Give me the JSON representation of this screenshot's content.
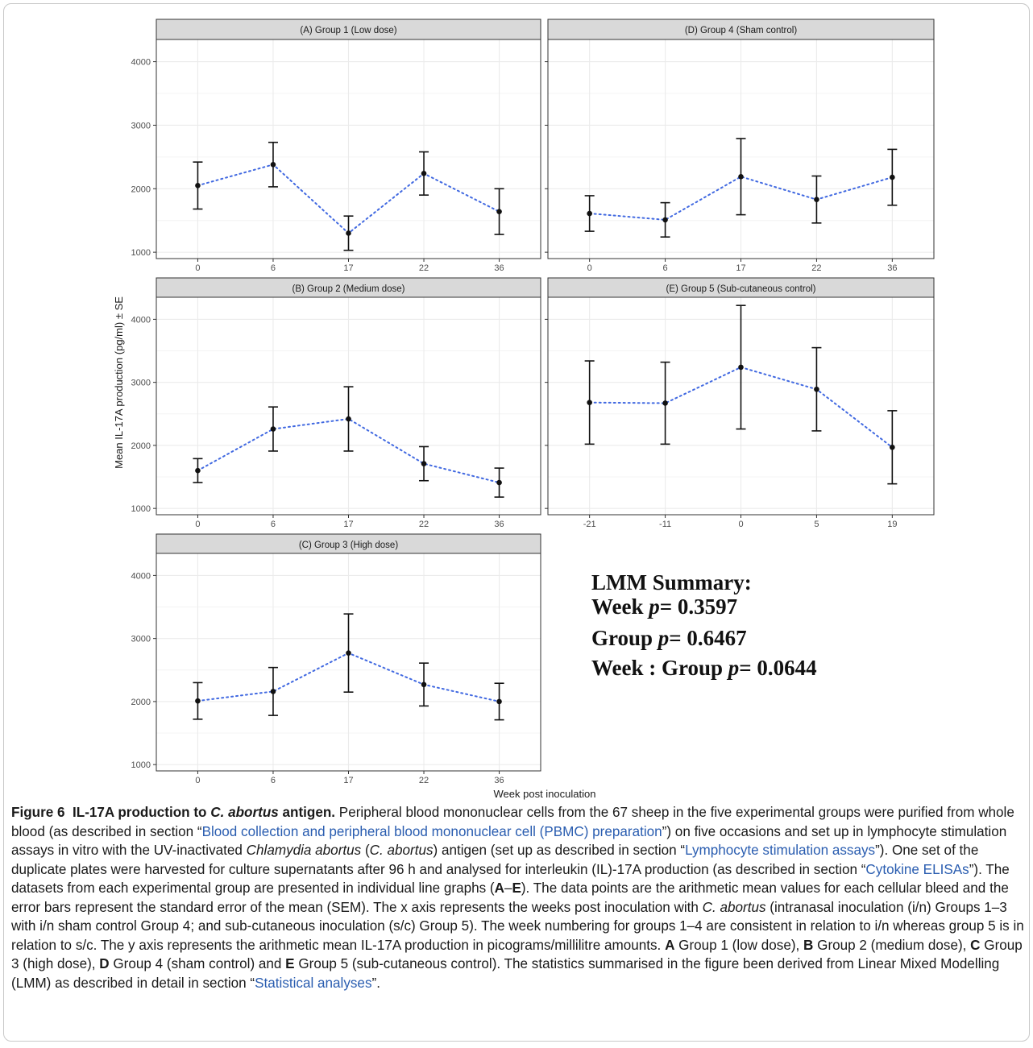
{
  "figure": {
    "y_axis_label": "Mean IL-17A production (pg/ml) ± SE",
    "x_axis_label": "Week post inoculation",
    "lmm_summary": {
      "title": "LMM Summary:",
      "lines": [
        {
          "prefix": "Week ",
          "p": "p",
          "value": "= 0.3597"
        },
        {
          "prefix": "Group ",
          "p": "p",
          "value": "= 0.6467"
        },
        {
          "prefix": "Week : Group ",
          "p": "p",
          "value": "= 0.0644"
        }
      ]
    },
    "colors": {
      "line": "#4169e1",
      "point": "#111111",
      "strip": "#d9d9d9",
      "grid": "#ebebeb"
    }
  },
  "chart_data": [
    {
      "panel": "A",
      "type": "line",
      "title": "(A) Group 1 (Low dose)",
      "categories": [
        "0",
        "6",
        "17",
        "22",
        "36"
      ],
      "values": [
        2050,
        2380,
        1300,
        2240,
        1640
      ],
      "se": [
        370,
        350,
        270,
        340,
        360
      ],
      "ylim": [
        900,
        4350
      ],
      "yticks": [
        1000,
        2000,
        3000,
        4000
      ]
    },
    {
      "panel": "D",
      "type": "line",
      "title": "(D) Group 4 (Sham control)",
      "categories": [
        "0",
        "6",
        "17",
        "22",
        "36"
      ],
      "values": [
        1610,
        1510,
        2190,
        1830,
        2180
      ],
      "se": [
        280,
        270,
        600,
        370,
        440
      ],
      "ylim": [
        900,
        4350
      ],
      "yticks": [
        1000,
        2000,
        3000,
        4000
      ]
    },
    {
      "panel": "B",
      "type": "line",
      "title": "(B) Group 2 (Medium dose)",
      "categories": [
        "0",
        "6",
        "17",
        "22",
        "36"
      ],
      "values": [
        1600,
        2260,
        2420,
        1710,
        1410
      ],
      "se": [
        190,
        350,
        510,
        270,
        230
      ],
      "ylim": [
        900,
        4350
      ],
      "yticks": [
        1000,
        2000,
        3000,
        4000
      ]
    },
    {
      "panel": "E",
      "type": "line",
      "title": "(E) Group 5 (Sub-cutaneous control)",
      "categories": [
        "-21",
        "-11",
        "0",
        "5",
        "19"
      ],
      "values": [
        2680,
        2670,
        3240,
        2890,
        1970
      ],
      "se": [
        660,
        650,
        980,
        660,
        580
      ],
      "ylim": [
        900,
        4350
      ],
      "yticks": [
        1000,
        2000,
        3000,
        4000
      ]
    },
    {
      "panel": "C",
      "type": "line",
      "title": "(C) Group 3 (High dose)",
      "categories": [
        "0",
        "6",
        "17",
        "22",
        "36"
      ],
      "values": [
        2010,
        2160,
        2770,
        2270,
        2000
      ],
      "se": [
        290,
        380,
        620,
        340,
        290
      ],
      "ylim": [
        900,
        4350
      ],
      "yticks": [
        1000,
        2000,
        3000,
        4000
      ]
    }
  ],
  "caption": {
    "fig_num": "Figure 6",
    "title_a": "IL-17A production to ",
    "title_em": "C. abortus",
    "title_b": " antigen.",
    "s1": " Peripheral blood mononuclear cells from the 67 sheep in the five experimental groups were purified from whole blood (as described in section “",
    "link1": "Blood collection and peripheral blood mononuclear cell (PBMC) preparation",
    "s2": "”) on five occasions and set up in lymphocyte stimulation assays in vitro with the UV-inactivated ",
    "em1": "Chlamydia abortus",
    "s3": " (",
    "em2": "C. abortus",
    "s4": ") antigen (set up as described in section “",
    "link2": "Lymphocyte stimulation assays",
    "s5": "”). One set of the duplicate plates were harvested for culture supernatants after 96 h and analysed for interleukin (IL)-17A production (as described in section “",
    "link3": "Cytokine ELISAs",
    "s6": "”). The datasets from each experimental group are presented in individual line graphs (",
    "b1": "A",
    "s7": "–",
    "b2": "E",
    "s8": "). The data points are the arithmetic mean values for each cellular bleed and the error bars represent the standard error of the mean (SEM). The x axis represents the weeks post inoculation with ",
    "em3": "C. abortus",
    "s9": " (intranasal inoculation (i/n) Groups 1–3 with i/n sham control Group 4; and sub-cutaneous inoculation (s/c) Group 5). The week numbering for groups 1–4 are consistent in relation to i/n whereas group 5 is in relation to s/c. The y axis represents the arithmetic mean IL-17A production in picograms/millilitre amounts. ",
    "bA": "A",
    "tA": " Group 1 (low dose), ",
    "bB": "B",
    "tB": " Group 2 (medium dose), ",
    "bC": "C",
    "tC": " Group 3 (high dose), ",
    "bD": "D",
    "tD": " Group 4 (sham control) and ",
    "bE": "E",
    "tE": " Group 5 (sub-cutaneous control). The statistics summarised in the figure been derived from Linear Mixed Modelling (LMM) as described in detail in section “",
    "link4": "Statistical analyses",
    "s10": "”."
  }
}
